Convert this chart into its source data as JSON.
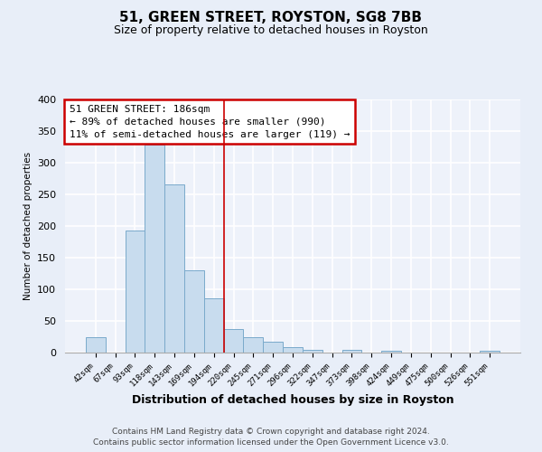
{
  "title": "51, GREEN STREET, ROYSTON, SG8 7BB",
  "subtitle": "Size of property relative to detached houses in Royston",
  "xlabel": "Distribution of detached houses by size in Royston",
  "ylabel": "Number of detached properties",
  "categories": [
    "42sqm",
    "67sqm",
    "93sqm",
    "118sqm",
    "143sqm",
    "169sqm",
    "194sqm",
    "220sqm",
    "245sqm",
    "271sqm",
    "296sqm",
    "322sqm",
    "347sqm",
    "373sqm",
    "398sqm",
    "424sqm",
    "449sqm",
    "475sqm",
    "500sqm",
    "526sqm",
    "551sqm"
  ],
  "values": [
    25,
    0,
    193,
    328,
    266,
    130,
    86,
    37,
    25,
    17,
    8,
    4,
    0,
    4,
    0,
    3,
    0,
    0,
    0,
    0,
    3
  ],
  "bar_color": "#c8dcee",
  "bar_edge_color": "#7aaacb",
  "marker_line_color": "#cc0000",
  "annotation_line1": "51 GREEN STREET: 186sqm",
  "annotation_line2": "← 89% of detached houses are smaller (990)",
  "annotation_line3": "11% of semi-detached houses are larger (119) →",
  "annotation_box_color": "#ffffff",
  "annotation_border_color": "#cc0000",
  "ylim": [
    0,
    400
  ],
  "yticks": [
    0,
    50,
    100,
    150,
    200,
    250,
    300,
    350,
    400
  ],
  "footer_line1": "Contains HM Land Registry data © Crown copyright and database right 2024.",
  "footer_line2": "Contains public sector information licensed under the Open Government Licence v3.0.",
  "background_color": "#e8eef8",
  "grid_color": "#ffffff",
  "plot_bg_color": "#eef2fa"
}
